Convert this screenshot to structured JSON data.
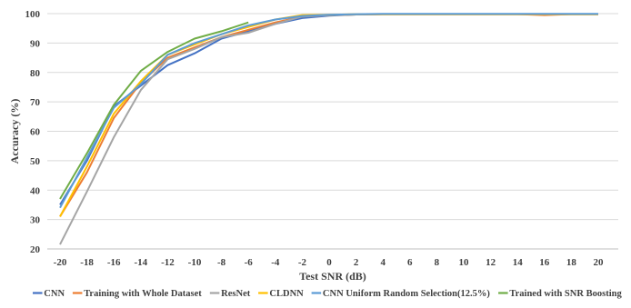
{
  "chart_data": {
    "type": "line",
    "title": "",
    "xlabel": "Test SNR (dB)",
    "ylabel": "Accuracy (%)",
    "x": [
      -20,
      -18,
      -16,
      -14,
      -12,
      -10,
      -8,
      -6,
      -4,
      -2,
      0,
      2,
      4,
      6,
      8,
      10,
      12,
      14,
      16,
      18,
      20
    ],
    "ylim": [
      20,
      100
    ],
    "yticks": [
      20,
      30,
      40,
      50,
      60,
      70,
      80,
      90,
      100
    ],
    "grid": "horizontal",
    "legend": "bottom",
    "series": [
      {
        "name": "CNN",
        "color": "#4472c4",
        "values": [
          35,
          50,
          68.5,
          75.5,
          82.5,
          86.5,
          91.5,
          94,
          96.5,
          98.5,
          99.3,
          99.7,
          99.8,
          99.8,
          99.8,
          99.8,
          99.8,
          99.8,
          99.8,
          99.8,
          99.8
        ]
      },
      {
        "name": "Training with Whole Dataset",
        "color": "#ed7d31",
        "values": [
          31,
          46,
          64.5,
          76.5,
          85,
          88.5,
          92,
          94.5,
          97,
          99,
          99.5,
          99.7,
          99.8,
          99.8,
          99.8,
          99.8,
          99.8,
          99.8,
          99.5,
          99.8,
          99.8
        ]
      },
      {
        "name": "ResNet",
        "color": "#a5a5a5",
        "values": [
          21.5,
          39.5,
          58,
          74,
          84.5,
          88,
          92,
          93.5,
          96.5,
          99,
          99.5,
          99.7,
          99.8,
          99.8,
          99.8,
          99.8,
          99.8,
          99.8,
          99.8,
          99.8,
          99.8
        ]
      },
      {
        "name": "CLDNN",
        "color": "#ffc000",
        "values": [
          31,
          48,
          66,
          77,
          86,
          89.5,
          93,
          95.5,
          98,
          99.5,
          99.6,
          99.8,
          99.8,
          99.8,
          99.8,
          99.8,
          99.8,
          99.8,
          99.8,
          99.8,
          99.8
        ]
      },
      {
        "name": "CNN Uniform Random Selection(12.5%)",
        "color": "#5b9bd5",
        "values": [
          34,
          51,
          68,
          76,
          86,
          90,
          93,
          96,
          98,
          99.2,
          99.6,
          99.8,
          99.9,
          99.9,
          99.9,
          99.9,
          99.9,
          99.9,
          99.9,
          99.9,
          99.9
        ]
      },
      {
        "name": "Trained with SNR Boosting",
        "color": "#70ad47",
        "values": [
          37,
          52.5,
          69,
          80.5,
          87,
          91.5,
          94,
          97,
          null,
          null,
          null,
          null,
          null,
          null,
          null,
          null,
          null,
          null,
          null,
          null,
          null
        ]
      }
    ]
  }
}
